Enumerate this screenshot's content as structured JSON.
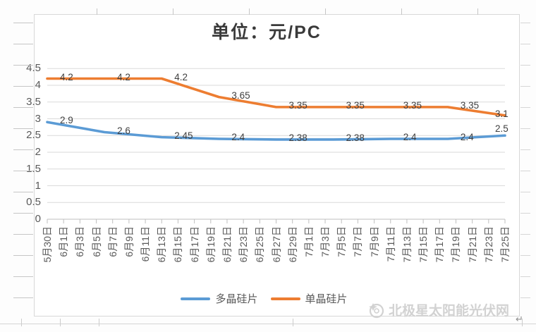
{
  "page": {
    "return_mark": "↵"
  },
  "watermark": {
    "text": "北极星太阳能光伏网",
    "icon": "beijixing-sun-star",
    "color": "#d2d2d2"
  },
  "chart_data": {
    "type": "line",
    "title": "单位：元/PC",
    "xlabel": "",
    "ylabel": "",
    "grid": true,
    "legend_position": "bottom",
    "ylim": [
      0,
      4.5
    ],
    "y_ticks": [
      0,
      0.5,
      1,
      1.5,
      2,
      2.5,
      3,
      3.5,
      4,
      4.5
    ],
    "categories": [
      "5月30日",
      "6月1日",
      "6月3日",
      "6月5日",
      "6月7日",
      "6月9日",
      "6月11日",
      "6月13日",
      "6月15日",
      "6月17日",
      "6月19日",
      "6月21日",
      "6月23日",
      "6月25日",
      "6月27日",
      "6月29日",
      "7月1日",
      "7月3日",
      "7月5日",
      "7月7日",
      "7月9日",
      "7月11日",
      "7月13日",
      "7月15日",
      "7月17日",
      "7月19日",
      "7月21日",
      "7月23日",
      "7月25日"
    ],
    "series": [
      {
        "name": "多晶硅片",
        "color": "#5B9BD5",
        "category_indices": [
          0,
          3.5,
          7,
          10.5,
          14,
          17.5,
          21,
          24.5,
          28
        ],
        "values": [
          2.9,
          2.6,
          2.45,
          2.4,
          2.38,
          2.38,
          2.4,
          2.4,
          2.5
        ]
      },
      {
        "name": "单晶硅片",
        "color": "#ED7D31",
        "category_indices": [
          0,
          3.5,
          7,
          10.5,
          14,
          17.5,
          21,
          24.5,
          28
        ],
        "values": [
          4.2,
          4.2,
          4.2,
          3.65,
          3.35,
          3.35,
          3.35,
          3.35,
          3.1
        ]
      }
    ]
  }
}
